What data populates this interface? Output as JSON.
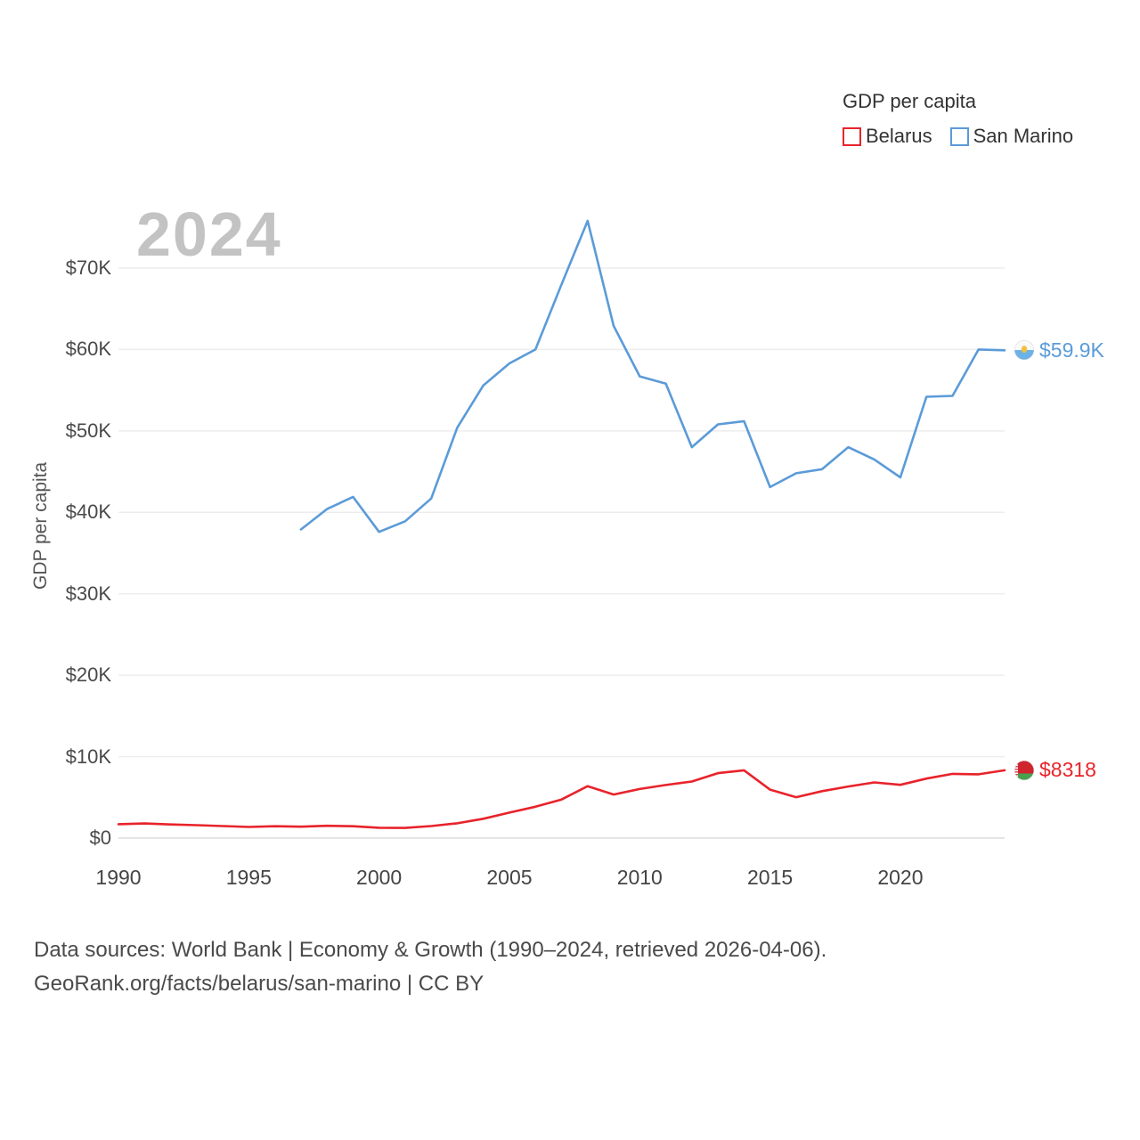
{
  "legend": {
    "title": "GDP per capita",
    "items": [
      {
        "label": "Belarus",
        "color": "#e8232b"
      },
      {
        "label": "San Marino",
        "color": "#5b9bd8"
      }
    ]
  },
  "watermark": "2024",
  "ylabel": "GDP per capita",
  "footer": {
    "line1": "Data sources: World Bank | Economy & Growth (1990–2024, retrieved 2026-04-06).",
    "line2": "GeoRank.org/facts/belarus/san-marino | CC BY"
  },
  "chart_data": {
    "type": "line",
    "title": "GDP per capita",
    "xlabel": "",
    "ylabel": "GDP per capita",
    "xlim": [
      1990,
      2024
    ],
    "ylim": [
      0,
      76000
    ],
    "grid": true,
    "legend_position": "top-right",
    "yticks": [
      {
        "v": 0,
        "label": "$0"
      },
      {
        "v": 10000,
        "label": "$10K"
      },
      {
        "v": 20000,
        "label": "$20K"
      },
      {
        "v": 30000,
        "label": "$30K"
      },
      {
        "v": 40000,
        "label": "$40K"
      },
      {
        "v": 50000,
        "label": "$50K"
      },
      {
        "v": 60000,
        "label": "$60K"
      },
      {
        "v": 70000,
        "label": "$70K"
      }
    ],
    "xticks": [
      1990,
      1995,
      2000,
      2005,
      2010,
      2015,
      2020
    ],
    "series": [
      {
        "name": "Belarus",
        "color": "#e8232b",
        "end_label": "$8318",
        "x": [
          1990,
          1991,
          1992,
          1993,
          1994,
          1995,
          1996,
          1997,
          1998,
          1999,
          2000,
          2001,
          2002,
          2003,
          2004,
          2005,
          2006,
          2007,
          2008,
          2009,
          2010,
          2011,
          2012,
          2013,
          2014,
          2015,
          2016,
          2017,
          2018,
          2019,
          2020,
          2021,
          2022,
          2023,
          2024
        ],
        "y": [
          1705,
          1790,
          1670,
          1590,
          1480,
          1371,
          1452,
          1397,
          1512,
          1450,
          1273,
          1244,
          1479,
          1819,
          2378,
          3126,
          3847,
          4736,
          6377,
          5352,
          6029,
          6519,
          6940,
          7978,
          8318,
          5949,
          5023,
          5762,
          6330,
          6837,
          6542,
          7304,
          7888,
          7829,
          8318
        ]
      },
      {
        "name": "San Marino",
        "color": "#5b9bd8",
        "end_label": "$59.9K",
        "x": [
          1997,
          1998,
          1999,
          2000,
          2001,
          2002,
          2003,
          2004,
          2005,
          2006,
          2007,
          2008,
          2009,
          2010,
          2011,
          2012,
          2013,
          2014,
          2015,
          2016,
          2017,
          2018,
          2019,
          2020,
          2021,
          2022,
          2023,
          2024
        ],
        "y": [
          37900,
          40400,
          41900,
          37600,
          38900,
          41700,
          50400,
          55600,
          58300,
          60000,
          68000,
          75800,
          62900,
          56700,
          55800,
          48000,
          50800,
          51200,
          43100,
          44800,
          45300,
          48000,
          46500,
          44300,
          54200,
          54300,
          60000,
          59900
        ]
      }
    ]
  }
}
